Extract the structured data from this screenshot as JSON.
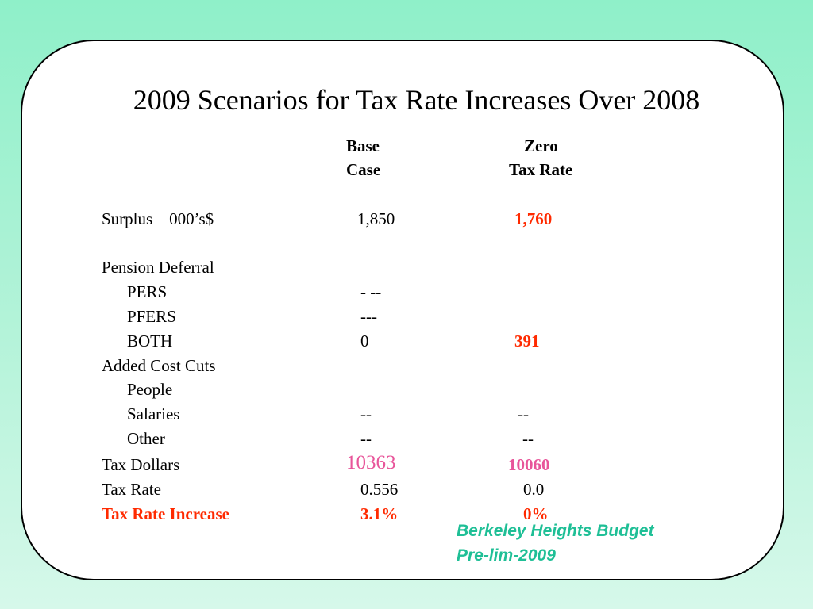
{
  "title": "2009 Scenarios for Tax Rate Increases Over 2008",
  "columns": {
    "base": {
      "line1": "Base",
      "line2": "Case"
    },
    "zero": {
      "line1": "Zero",
      "line2": "Tax Rate"
    }
  },
  "rows": {
    "surplus": {
      "label": "Surplus    000’s$",
      "base": "1,850",
      "zero": "1,760"
    },
    "pension": {
      "label": "Pension Deferral"
    },
    "pers": {
      "label": "PERS",
      "base": "- --"
    },
    "pfers": {
      "label": "PFERS",
      "base": "---"
    },
    "both": {
      "label": "BOTH",
      "base": "0",
      "zero": "391"
    },
    "added": {
      "label": "Added Cost Cuts"
    },
    "people": {
      "label": "People"
    },
    "salaries": {
      "label": "Salaries",
      "base": "--",
      "zero": "--"
    },
    "other": {
      "label": "Other",
      "base": "--",
      "zero": "--"
    },
    "tax_dollars": {
      "label": "Tax Dollars",
      "base": "10363",
      "zero": "10060"
    },
    "tax_rate": {
      "label": "Tax Rate",
      "base": "0.556",
      "zero": "0.0"
    },
    "tax_rate_increase": {
      "label": "Tax Rate Increase",
      "base": "3.1%",
      "zero": "0%"
    }
  },
  "footer": {
    "line1": "Berkeley Heights Budget",
    "line2": "Pre-lim-2009"
  },
  "colors": {
    "background": "#8ff0c9",
    "card": "#ffffff",
    "highlight_red": "#ff2a00",
    "highlight_pink": "#e8559a",
    "footer_green": "#1fbf96"
  }
}
